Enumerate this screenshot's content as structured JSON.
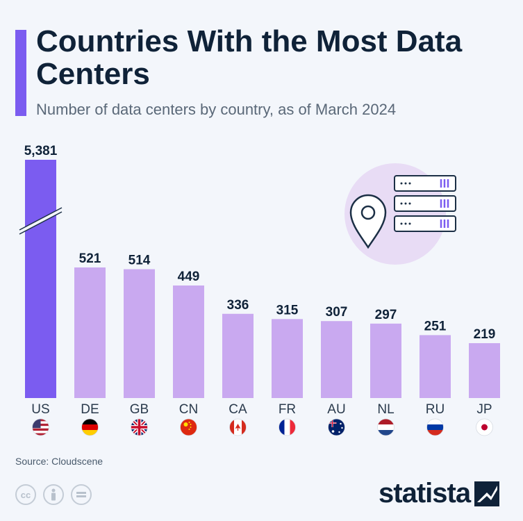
{
  "header": {
    "title": "Countries With the Most Data Centers",
    "subtitle": "Number of data centers by country, as of March 2024"
  },
  "colors": {
    "accent": "#7b5cf0",
    "bar_highlight": "#7b5cf0",
    "bar_default": "#c9a9f0",
    "title_text": "#0f2238",
    "illustration_bg": "#e8dcf5"
  },
  "chart_data": {
    "type": "bar",
    "title": "Countries With the Most Data Centers",
    "subtitle": "Number of data centers by country, as of March 2024",
    "categories": [
      "US",
      "DE",
      "GB",
      "CN",
      "CA",
      "FR",
      "AU",
      "NL",
      "RU",
      "JP"
    ],
    "values": [
      5381,
      521,
      514,
      449,
      336,
      315,
      307,
      297,
      251,
      219
    ],
    "value_labels": [
      "5,381",
      "521",
      "514",
      "449",
      "336",
      "315",
      "307",
      "297",
      "251",
      "219"
    ],
    "axis_break_on": "US",
    "ylim": [
      0,
      600
    ],
    "grid": false,
    "xlabel": "",
    "ylabel": ""
  },
  "footer": {
    "source": "Source: Cloudscene",
    "brand": "statista",
    "license_icons": [
      "cc-icon",
      "attribution-icon",
      "no-derivatives-icon"
    ]
  }
}
